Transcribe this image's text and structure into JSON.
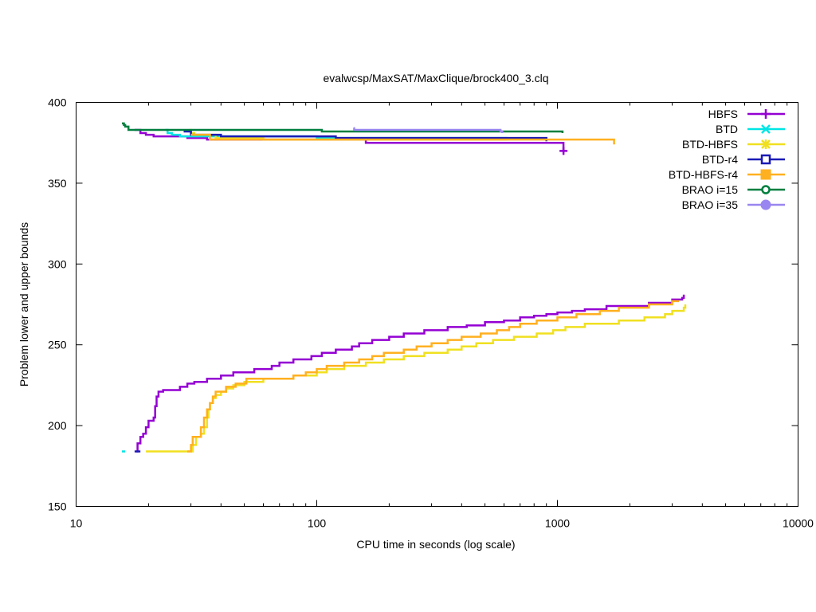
{
  "chart_data": {
    "type": "line",
    "title": "evalwcsp/MaxSAT/MaxClique/brock400_3.clq",
    "xlabel": "CPU time in seconds (log scale)",
    "ylabel": "Problem lower and upper bounds",
    "xscale": "log",
    "xlim": [
      10,
      10000
    ],
    "ylim": [
      150,
      400
    ],
    "xticks": [
      10,
      100,
      1000,
      10000
    ],
    "xtick_labels": [
      "10",
      "100",
      "1000",
      "10000"
    ],
    "yticks": [
      150,
      200,
      250,
      300,
      350,
      400
    ],
    "ytick_labels": [
      "150",
      "200",
      "250",
      "300",
      "350",
      "400"
    ],
    "grid": false,
    "legend_position": "top-right",
    "series": [
      {
        "name": "HBFS",
        "color": "#9400d3",
        "marker": "plus",
        "upper": [
          [
            17.5,
            383
          ],
          [
            18.5,
            381
          ],
          [
            19.5,
            380
          ],
          [
            21,
            379
          ],
          [
            25,
            379
          ],
          [
            29,
            378
          ],
          [
            35,
            377
          ],
          [
            40,
            377
          ],
          [
            60,
            377
          ],
          [
            100,
            377
          ],
          [
            150,
            377
          ],
          [
            160,
            375
          ],
          [
            250,
            375
          ],
          [
            500,
            375
          ],
          [
            1000,
            375
          ],
          [
            1060,
            370
          ]
        ],
        "lower": [
          [
            17.8,
            184
          ],
          [
            18,
            189
          ],
          [
            18.5,
            193
          ],
          [
            19,
            195
          ],
          [
            19.5,
            199
          ],
          [
            20,
            203
          ],
          [
            21,
            205
          ],
          [
            21.3,
            212
          ],
          [
            21.6,
            218
          ],
          [
            22,
            221
          ],
          [
            23,
            222
          ],
          [
            27,
            224
          ],
          [
            29,
            226
          ],
          [
            31,
            227
          ],
          [
            35,
            229
          ],
          [
            40,
            231
          ],
          [
            45,
            233
          ],
          [
            55,
            235
          ],
          [
            65,
            237
          ],
          [
            70,
            239
          ],
          [
            80,
            241
          ],
          [
            95,
            243
          ],
          [
            105,
            245
          ],
          [
            120,
            247
          ],
          [
            140,
            249
          ],
          [
            150,
            251
          ],
          [
            170,
            253
          ],
          [
            200,
            255
          ],
          [
            230,
            257
          ],
          [
            280,
            259
          ],
          [
            350,
            261
          ],
          [
            420,
            262
          ],
          [
            500,
            264
          ],
          [
            600,
            265
          ],
          [
            700,
            267
          ],
          [
            800,
            268
          ],
          [
            900,
            269
          ],
          [
            1000,
            270
          ],
          [
            1150,
            271
          ],
          [
            1300,
            272
          ],
          [
            1600,
            274
          ],
          [
            2000,
            274
          ],
          [
            2400,
            276
          ],
          [
            3000,
            278
          ],
          [
            3300,
            279
          ],
          [
            3350,
            281
          ]
        ]
      },
      {
        "name": "BTD",
        "color": "#00e5e5",
        "marker": "cross",
        "upper": [
          [
            23.5,
            383
          ],
          [
            24,
            381
          ],
          [
            25,
            380
          ],
          [
            27,
            379
          ],
          [
            35,
            379
          ],
          [
            100,
            378
          ],
          [
            200,
            378
          ],
          [
            300,
            378
          ],
          [
            620,
            378
          ]
        ],
        "lower": [
          [
            15.5,
            184
          ],
          [
            16,
            184
          ]
        ]
      },
      {
        "name": "BTD-HBFS",
        "color": "#f0e020",
        "marker": "star",
        "upper": [
          [
            29.5,
            383
          ],
          [
            30,
            381
          ],
          [
            31,
            380
          ],
          [
            38,
            378
          ],
          [
            60,
            377
          ],
          [
            200,
            377
          ],
          [
            620,
            377
          ]
        ],
        "lower": [
          [
            19.5,
            184
          ],
          [
            28,
            184
          ],
          [
            30.5,
            188
          ],
          [
            31.5,
            193
          ],
          [
            33,
            195
          ],
          [
            34,
            199
          ],
          [
            35,
            205
          ],
          [
            35.5,
            210
          ],
          [
            36,
            214
          ],
          [
            37,
            217
          ],
          [
            38,
            219
          ],
          [
            40,
            221
          ],
          [
            42,
            223
          ],
          [
            45,
            225
          ],
          [
            50,
            227
          ],
          [
            60,
            229
          ],
          [
            80,
            231
          ],
          [
            100,
            233
          ],
          [
            110,
            235
          ],
          [
            130,
            237
          ],
          [
            160,
            239
          ],
          [
            190,
            241
          ],
          [
            230,
            243
          ],
          [
            280,
            245
          ],
          [
            350,
            247
          ],
          [
            400,
            249
          ],
          [
            460,
            251
          ],
          [
            540,
            253
          ],
          [
            660,
            255
          ],
          [
            820,
            257
          ],
          [
            960,
            259
          ],
          [
            1080,
            261
          ],
          [
            1300,
            263
          ],
          [
            1800,
            265
          ],
          [
            2300,
            267
          ],
          [
            2800,
            269
          ],
          [
            3000,
            271
          ],
          [
            3350,
            273
          ],
          [
            3400,
            275
          ]
        ]
      },
      {
        "name": "BTD-r4",
        "color": "#1a1ab5",
        "marker": "box",
        "upper": [
          [
            28,
            382
          ],
          [
            30,
            380
          ],
          [
            40,
            379
          ],
          [
            80,
            379
          ],
          [
            120,
            378
          ],
          [
            380,
            378
          ],
          [
            900,
            376
          ]
        ],
        "lower": [
          [
            17.5,
            184
          ],
          [
            18.5,
            184
          ]
        ]
      },
      {
        "name": "BTD-HBFS-r4",
        "color": "#ffb020",
        "marker": "filled-box",
        "upper": [
          [
            30,
            380
          ],
          [
            36,
            377
          ],
          [
            80,
            377
          ],
          [
            150,
            377
          ],
          [
            300,
            377
          ],
          [
            700,
            377
          ],
          [
            1000,
            377
          ],
          [
            1700,
            377
          ],
          [
            1720,
            374
          ]
        ],
        "lower": [
          [
            29,
            184
          ],
          [
            30,
            188
          ],
          [
            30.5,
            193
          ],
          [
            33,
            199
          ],
          [
            34,
            205
          ],
          [
            35,
            210
          ],
          [
            36,
            214
          ],
          [
            37,
            218
          ],
          [
            38,
            221
          ],
          [
            42,
            224
          ],
          [
            46,
            226
          ],
          [
            51,
            229
          ],
          [
            80,
            231
          ],
          [
            90,
            233
          ],
          [
            100,
            235
          ],
          [
            110,
            237
          ],
          [
            130,
            239
          ],
          [
            150,
            241
          ],
          [
            170,
            243
          ],
          [
            190,
            245
          ],
          [
            230,
            247
          ],
          [
            260,
            249
          ],
          [
            300,
            251
          ],
          [
            350,
            253
          ],
          [
            400,
            255
          ],
          [
            480,
            257
          ],
          [
            560,
            259
          ],
          [
            630,
            261
          ],
          [
            700,
            263
          ],
          [
            820,
            265
          ],
          [
            1000,
            267
          ],
          [
            1200,
            269
          ],
          [
            1500,
            271
          ],
          [
            1800,
            273
          ],
          [
            2400,
            275
          ],
          [
            3000,
            277
          ],
          [
            3200,
            277
          ]
        ]
      },
      {
        "name": "BRAO i=15",
        "color": "#007f3f",
        "marker": "circle",
        "upper": [
          [
            15.5,
            387
          ],
          [
            15.8,
            386
          ],
          [
            16,
            385
          ],
          [
            16.5,
            383
          ],
          [
            50,
            383
          ],
          [
            100,
            383
          ],
          [
            105,
            382
          ],
          [
            200,
            382
          ],
          [
            400,
            382
          ],
          [
            600,
            382
          ],
          [
            1050,
            381
          ]
        ],
        "lower": []
      },
      {
        "name": "BRAO i=35",
        "color": "#9a86f0",
        "marker": "filled-circle",
        "upper": [
          [
            142,
            384
          ],
          [
            143,
            383
          ],
          [
            300,
            383
          ],
          [
            580,
            382
          ],
          [
            590,
            381
          ]
        ],
        "lower": []
      }
    ]
  }
}
